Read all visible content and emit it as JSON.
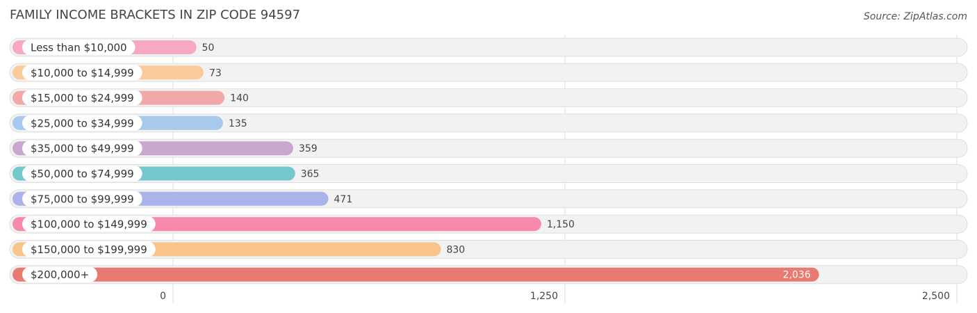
{
  "chart_data": {
    "type": "bar",
    "orientation": "horizontal",
    "title": "FAMILY INCOME BRACKETS IN ZIP CODE 94597",
    "source": "Source: ZipAtlas.com",
    "categories": [
      "Less than $10,000",
      "$10,000 to $14,999",
      "$15,000 to $24,999",
      "$25,000 to $34,999",
      "$35,000 to $49,999",
      "$50,000 to $74,999",
      "$75,000 to $99,999",
      "$100,000 to $149,999",
      "$150,000 to $199,999",
      "$200,000+"
    ],
    "values": [
      50,
      73,
      140,
      135,
      359,
      365,
      471,
      1150,
      830,
      2036
    ],
    "value_labels": [
      "50",
      "73",
      "140",
      "135",
      "359",
      "365",
      "471",
      "1,150",
      "830",
      "2,036"
    ],
    "colors": [
      "#f7a8c4",
      "#f9cb9c",
      "#f0a8a8",
      "#a8c8ec",
      "#c9a8d0",
      "#72c8cc",
      "#aab4ea",
      "#f78aab",
      "#f9c48a",
      "#e87a72"
    ],
    "xlim": [
      0,
      2500
    ],
    "xticks": [
      0,
      {
        "value": 1250,
        "label": "1,250"
      },
      {
        "value": 2500,
        "label": "2,500"
      }
    ],
    "grid": true
  }
}
